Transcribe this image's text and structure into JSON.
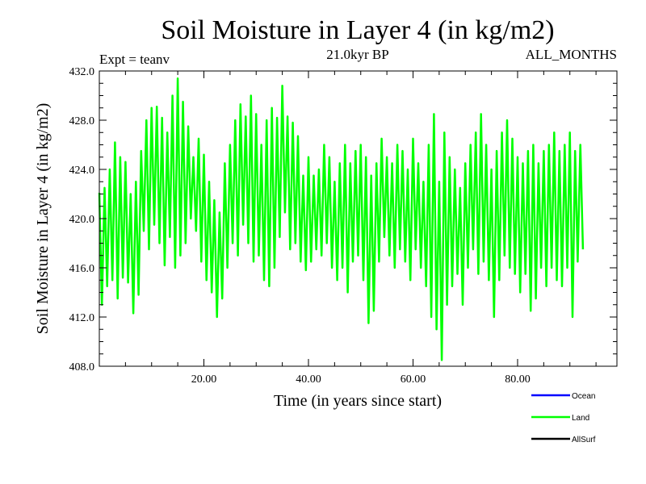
{
  "chart_data": {
    "type": "line",
    "title": "Soil Moisture in Layer 4 (in kg/m2)",
    "subtitle": "21.0kyr BP",
    "left_note": "Expt = teanv",
    "right_note": "ALL_MONTHS",
    "xlabel": "Time (in years since start)",
    "ylabel": "Soil Moisture in Layer 4 (in kg/m2)",
    "xlim": [
      0,
      99
    ],
    "ylim": [
      408,
      432
    ],
    "xticks": [
      20,
      40,
      60,
      80
    ],
    "xtick_labels": [
      "20.00",
      "40.00",
      "60.00",
      "80.00"
    ],
    "yticks": [
      408,
      412,
      416,
      420,
      424,
      428,
      432
    ],
    "ytick_labels": [
      "408.0",
      "412.0",
      "416.0",
      "420.0",
      "424.0",
      "428.0",
      "432.0"
    ],
    "legend_position": "bottom-right",
    "legend": [
      {
        "name": "Ocean",
        "color": "#0000ff"
      },
      {
        "name": "Land",
        "color": "#00ff00"
      },
      {
        "name": "AllSurf",
        "color": "#000000"
      }
    ],
    "series": [
      {
        "name": "Land",
        "color": "#00ff00",
        "x_start": 0,
        "x_step": 0.5,
        "values": [
          422.1,
          413.0,
          422.5,
          414.5,
          424.0,
          415.0,
          426.2,
          413.5,
          425.0,
          415.2,
          424.6,
          414.8,
          422.0,
          412.3,
          423.0,
          413.8,
          425.5,
          419.0,
          428.0,
          417.5,
          429.0,
          419.5,
          429.1,
          418.0,
          428.2,
          416.2,
          427.0,
          418.5,
          430.0,
          416.0,
          431.4,
          417.0,
          429.5,
          418.0,
          427.5,
          420.0,
          425.0,
          419.0,
          426.5,
          416.5,
          425.2,
          415.0,
          423.0,
          414.0,
          421.5,
          412.0,
          420.5,
          413.5,
          424.5,
          416.0,
          426.0,
          418.0,
          428.0,
          417.0,
          429.3,
          419.5,
          428.3,
          418.0,
          430.0,
          416.5,
          428.5,
          417.0,
          426.0,
          415.0,
          428.0,
          414.5,
          429.0,
          416.0,
          428.2,
          418.5,
          430.8,
          420.5,
          428.3,
          417.5,
          427.8,
          418.0,
          426.7,
          416.5,
          423.5,
          415.8,
          425.0,
          416.5,
          423.5,
          417.5,
          424.0,
          417.0,
          426.0,
          418.0,
          425.0,
          416.0,
          423.0,
          415.0,
          424.5,
          416.0,
          426.0,
          414.0,
          424.5,
          416.5,
          425.5,
          417.0,
          426.0,
          415.0,
          425.0,
          411.5,
          423.5,
          412.5,
          424.5,
          416.5,
          426.5,
          418.5,
          425.0,
          417.0,
          424.5,
          416.0,
          426.0,
          417.5,
          425.5,
          416.5,
          424.0,
          415.0,
          426.5,
          417.5,
          424.5,
          416.0,
          423.0,
          414.5,
          426.0,
          412.0,
          428.5,
          411.0,
          423.0,
          408.5,
          427.0,
          413.0,
          425.0,
          414.5,
          424.0,
          415.5,
          422.5,
          413.0,
          424.5,
          416.0,
          426.0,
          417.5,
          427.0,
          415.5,
          428.5,
          416.5,
          426.0,
          415.0,
          424.0,
          412.0,
          425.5,
          415.0,
          427.0,
          417.0,
          428.0,
          416.0,
          426.5,
          415.5,
          425.0,
          414.0,
          424.5,
          415.5,
          425.5,
          412.5,
          426.0,
          413.5,
          424.5,
          416.0,
          425.5,
          414.5,
          426.0,
          416.0,
          427.0,
          415.0,
          425.5,
          414.5,
          426.0,
          416.0,
          427.0,
          412.0,
          425.5,
          416.5,
          426.0,
          417.5
        ]
      }
    ]
  }
}
